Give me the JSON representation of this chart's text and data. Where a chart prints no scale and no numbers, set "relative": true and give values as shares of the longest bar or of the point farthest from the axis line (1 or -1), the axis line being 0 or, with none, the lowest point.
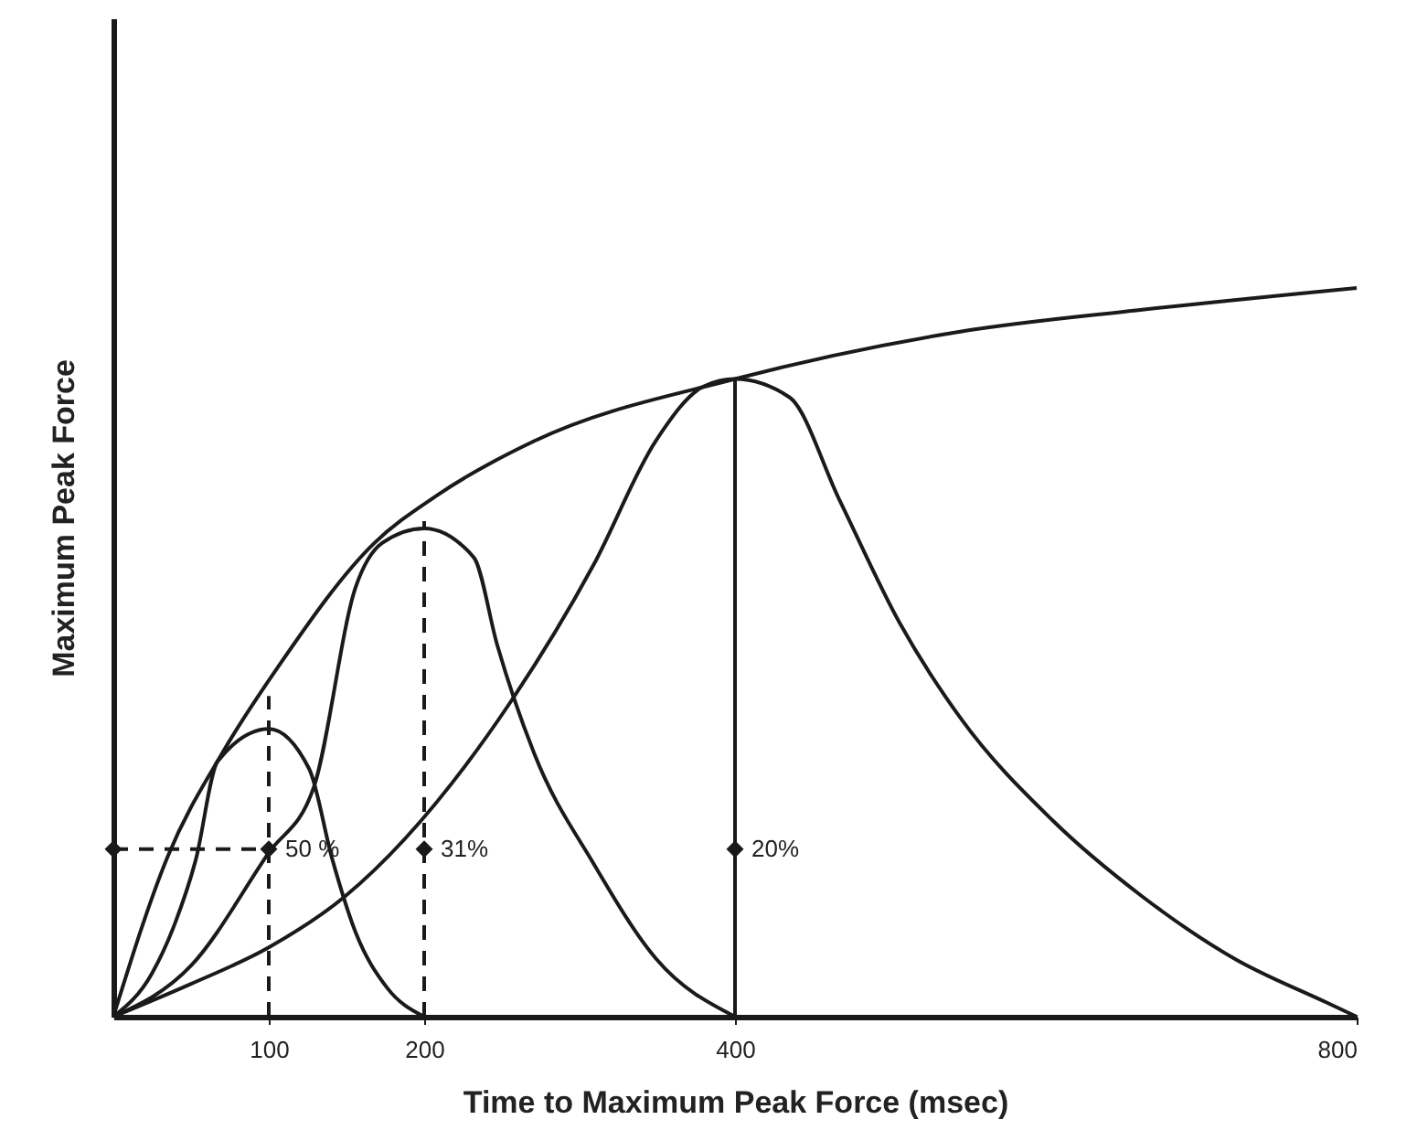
{
  "chart_data": {
    "type": "line",
    "relative": true,
    "xlabel": "Time to Maximum Peak Force (msec)",
    "ylabel": "Maximum Peak Force",
    "xlim": [
      0,
      800
    ],
    "xticks": [
      100,
      200,
      400,
      800
    ],
    "grid": false,
    "series": [
      {
        "color": "#1a1a1a",
        "line_style": "solid",
        "x": [
          0,
          35,
          71,
          106,
          168,
          208,
          271,
          400,
          545,
          662,
          800
        ],
        "values": [
          0,
          0.22,
          0.365,
          0.48,
          0.65,
          0.715,
          0.79,
          0.875,
          0.94,
          0.97,
          1.0
        ]
      },
      {
        "color": "#1a1a1a",
        "line_style": "solid",
        "x": [
          0,
          25,
          40,
          53,
          67,
          100,
          126,
          141,
          156,
          176,
          200
        ],
        "values": [
          0,
          0.06,
          0.13,
          0.215,
          0.35,
          0.395,
          0.34,
          0.215,
          0.115,
          0.04,
          0
        ]
      },
      {
        "color": "#1a1a1a",
        "line_style": "solid",
        "x": [
          0,
          50,
          100,
          129,
          156,
          173,
          200,
          232,
          247,
          271,
          309,
          349,
          400
        ],
        "values": [
          0,
          0.07,
          0.225,
          0.315,
          0.59,
          0.65,
          0.67,
          0.63,
          0.51,
          0.36,
          0.21,
          0.08,
          0
        ]
      },
      {
        "color": "#1a1a1a",
        "line_style": "solid",
        "x": [
          0,
          50,
          100,
          149,
          255,
          309,
          349,
          380,
          400,
          435,
          467,
          506,
          545,
          604,
          662,
          721,
          780,
          800
        ],
        "values": [
          0,
          0.045,
          0.095,
          0.165,
          0.43,
          0.62,
          0.79,
          0.865,
          0.875,
          0.85,
          0.71,
          0.54,
          0.41,
          0.27,
          0.165,
          0.08,
          0.02,
          0
        ]
      },
      {
        "type": "line",
        "color": "#1a1a1a",
        "line_style": "dashed",
        "x": [
          0,
          100
        ],
        "values": [
          0.23,
          0.23
        ]
      },
      {
        "type": "line",
        "color": "#1a1a1a",
        "line_style": "dashed",
        "x": [
          100,
          100
        ],
        "values": [
          0,
          0.44
        ]
      },
      {
        "type": "line",
        "color": "#1a1a1a",
        "line_style": "dashed",
        "x": [
          200,
          200
        ],
        "values": [
          0,
          0.68
        ]
      },
      {
        "type": "line",
        "color": "#1a1a1a",
        "line_style": "solid",
        "x": [
          400,
          400
        ],
        "values": [
          0,
          0.875
        ]
      },
      {
        "type": "scatter",
        "color": "#1a1a1a",
        "marker": "diamond",
        "x": [
          0,
          100,
          200,
          400
        ],
        "values": [
          0.23,
          0.23,
          0.23,
          0.23
        ]
      }
    ],
    "annotations": [
      {
        "text": "50 %",
        "x": 100,
        "y": 0.23
      },
      {
        "text": "31%",
        "x": 200,
        "y": 0.23
      },
      {
        "text": "20%",
        "x": 400,
        "y": 0.23
      }
    ]
  }
}
